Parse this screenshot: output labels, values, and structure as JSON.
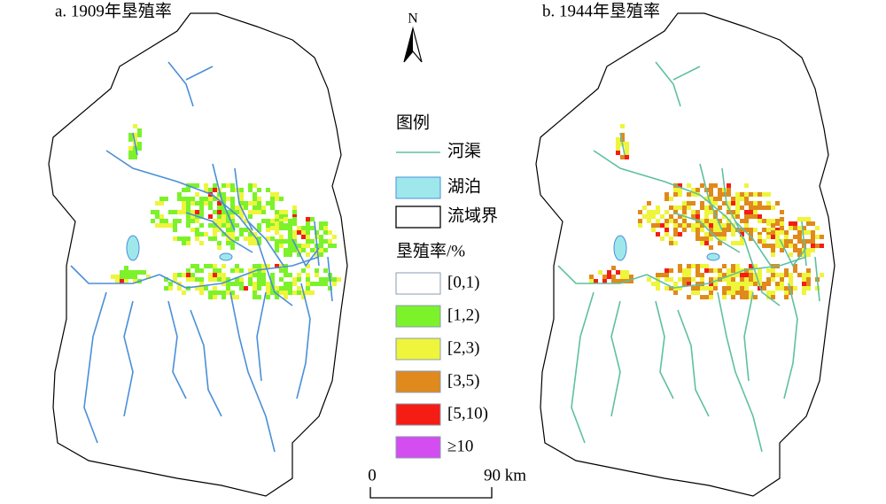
{
  "panels": [
    {
      "title": "a. 1909年垦殖率"
    },
    {
      "title": "b. 1944年垦殖率"
    }
  ],
  "north": "N",
  "legend": {
    "title": "图例",
    "items": [
      {
        "label": "河渠",
        "color": "#5fc0a0"
      },
      {
        "label": "湖泊",
        "color": "#9ee8ec"
      },
      {
        "label": "流域界",
        "color": "#000000"
      }
    ],
    "rate_title": "垦殖率/%",
    "rate_items": [
      {
        "label": "[0,1)",
        "color": "#ffffff"
      },
      {
        "label": "[1,2)",
        "color": "#7cf22a"
      },
      {
        "label": "[2,3)",
        "color": "#eef53a"
      },
      {
        "label": "[3,5)",
        "color": "#e0891c"
      },
      {
        "label": "[5,10)",
        "color": "#f51c14"
      },
      {
        "label": "≥10",
        "color": "#d34df0"
      }
    ]
  },
  "scale": {
    "start": "0",
    "end": "90 km"
  }
}
